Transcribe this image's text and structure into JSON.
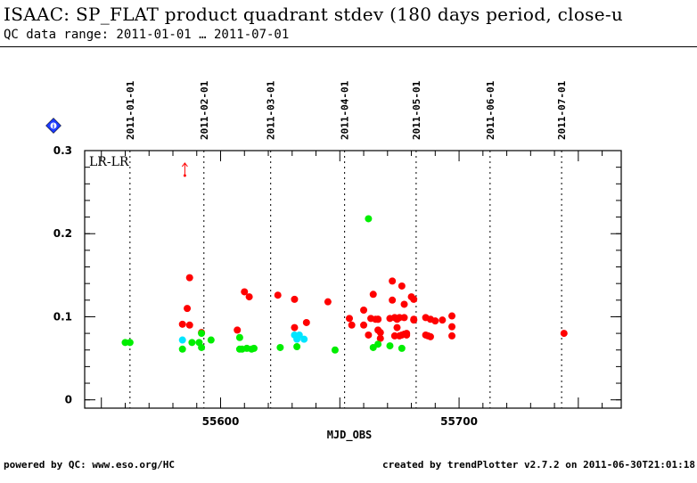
{
  "header": {
    "title": "ISAAC: SP_FLAT product quadrant stdev (180 days period, close-u",
    "subtitle": "QC data range: 2011-01-01 … 2011-07-01"
  },
  "footer": {
    "left": "powered by QC: www.eso.org/HC",
    "right": "created by trendPlotter v2.7.2 on 2011-06-30T21:01:18"
  },
  "badge": {
    "icon": "diamond-info-icon",
    "glyph": "i",
    "color": "#1e3cff"
  },
  "chart_data": {
    "type": "scatter",
    "panel_label": "LR-LR",
    "xlabel": "MJD_OBS",
    "ylabel": "",
    "xlim": [
      55543,
      55768
    ],
    "ylim": [
      -0.01,
      0.3
    ],
    "xticks": [
      55600,
      55700
    ],
    "yticks": [
      0,
      0.1,
      0.2,
      0.3
    ],
    "ytick_labels": [
      "0",
      "0.1",
      "0.2",
      "0.3"
    ],
    "grid": false,
    "date_markers": [
      {
        "x": 55562,
        "label": "2011-01-01"
      },
      {
        "x": 55593,
        "label": "2011-02-01"
      },
      {
        "x": 55621,
        "label": "2011-03-01"
      },
      {
        "x": 55652,
        "label": "2011-04-01"
      },
      {
        "x": 55682,
        "label": "2011-05-01"
      },
      {
        "x": 55713,
        "label": "2011-06-01"
      },
      {
        "x": 55743,
        "label": "2011-07-01"
      }
    ],
    "outlier_arrow": {
      "x": 55585,
      "y": 0.27,
      "color": "#ff0000"
    },
    "series": [
      {
        "color": "#ff0000",
        "x": [
          55584,
          55586,
          55587,
          55587,
          55592,
          55607,
          55610,
          55612,
          55624,
          55631,
          55631,
          55636,
          55645,
          55654,
          55655,
          55660,
          55660,
          55662,
          55663,
          55664,
          55665,
          55666,
          55666,
          55666,
          55667,
          55667,
          55671,
          55672,
          55672,
          55673,
          55673,
          55674,
          55674,
          55675,
          55675,
          55676,
          55676,
          55677,
          55677,
          55677,
          55678,
          55678,
          55680,
          55681,
          55681,
          55681,
          55686,
          55686,
          55687,
          55688,
          55688,
          55690,
          55693,
          55697,
          55697,
          55697,
          55744
        ],
        "y": [
          0.091,
          0.11,
          0.147,
          0.09,
          0.081,
          0.084,
          0.13,
          0.124,
          0.126,
          0.121,
          0.087,
          0.093,
          0.118,
          0.098,
          0.09,
          0.09,
          0.108,
          0.078,
          0.098,
          0.127,
          0.097,
          0.084,
          0.097,
          0.097,
          0.081,
          0.074,
          0.098,
          0.12,
          0.143,
          0.099,
          0.077,
          0.087,
          0.097,
          0.099,
          0.077,
          0.137,
          0.078,
          0.115,
          0.099,
          0.079,
          0.078,
          0.08,
          0.124,
          0.121,
          0.097,
          0.096,
          0.099,
          0.078,
          0.077,
          0.097,
          0.076,
          0.095,
          0.096,
          0.101,
          0.088,
          0.077,
          0.08
        ]
      },
      {
        "color": "#00ee00",
        "x": [
          55560,
          55562,
          55584,
          55588,
          55591,
          55592,
          55592,
          55596,
          55608,
          55608,
          55609,
          55611,
          55613,
          55614,
          55625,
          55632,
          55648,
          55662,
          55664,
          55666,
          55671,
          55676
        ],
        "y": [
          0.069,
          0.069,
          0.061,
          0.069,
          0.069,
          0.08,
          0.063,
          0.072,
          0.075,
          0.061,
          0.061,
          0.062,
          0.061,
          0.062,
          0.063,
          0.064,
          0.06,
          0.218,
          0.063,
          0.067,
          0.065,
          0.062
        ]
      },
      {
        "color": "#00e5ff",
        "x": [
          55584,
          55631,
          55632,
          55633,
          55635
        ],
        "y": [
          0.072,
          0.078,
          0.073,
          0.078,
          0.073
        ]
      }
    ]
  }
}
